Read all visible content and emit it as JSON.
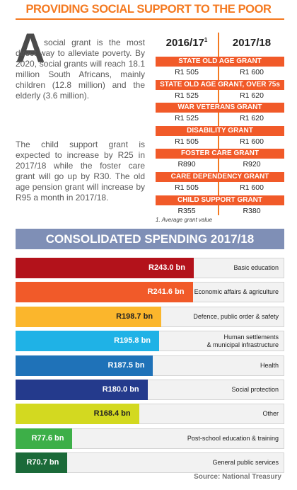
{
  "header": {
    "title": "PROVIDING SOCIAL SUPPORT TO THE POOR"
  },
  "intro": {
    "drop_cap": "A",
    "paragraphs": [
      "social grant is the most direct way to alleviate poverty. By 2020, social grants will reach 18.1 million South Africans, mainly children (12.8 million) and the elderly (3.6 million).",
      "The child support grant is expected to increase by R25 in 2017/18 while the foster care grant will go up by R30. The old age pension grant will increase by R95 a month in 2017/18."
    ]
  },
  "grants_table": {
    "columns": [
      {
        "label": "2016/17",
        "note": "1"
      },
      {
        "label": "2017/18"
      }
    ],
    "rows": [
      {
        "name": "STATE OLD AGE GRANT",
        "values": [
          "R1 505",
          "R1 600"
        ]
      },
      {
        "name": "STATE OLD AGE GRANT, OVER 75s",
        "values": [
          "R1 525",
          "R1 620"
        ]
      },
      {
        "name": "WAR VETERANS GRANT",
        "values": [
          "R1 525",
          "R1 620"
        ]
      },
      {
        "name": "DISABILITY GRANT",
        "values": [
          "R1 505",
          "R1 600"
        ]
      },
      {
        "name": "FOSTER CARE GRANT",
        "values": [
          "R890",
          "R920"
        ]
      },
      {
        "name": "CARE DEPENDENCY GRANT",
        "values": [
          "R1 505",
          "R1 600"
        ]
      },
      {
        "name": "CHILD SUPPORT GRANT",
        "values": [
          "R355",
          "R380"
        ]
      }
    ],
    "footnote": "1. Average grant value"
  },
  "chart_data": {
    "type": "bar",
    "orientation": "horizontal",
    "title": "CONSOLIDATED SPENDING 2017/18",
    "categories": [
      "Basic education",
      "Economic affairs & agriculture",
      "Defence, public order & safety",
      "Human settlements\n& municipal infrastructure",
      "Health",
      "Social protection",
      "Other",
      "Post-school education & training",
      "General public services"
    ],
    "values": [
      243.0,
      241.6,
      198.7,
      195.8,
      187.5,
      180.0,
      168.4,
      77.6,
      70.7
    ],
    "value_labels": [
      "R243.0 bn",
      "R241.6 bn",
      "R198.7 bn",
      "R195.8 bn",
      "R187.5 bn",
      "R180.0 bn",
      "R168.4 bn",
      "R77.6 bn",
      "R70.7 bn"
    ],
    "colors": [
      "#b3121b",
      "#f15a29",
      "#fbb62c",
      "#1fb2e6",
      "#1f72b8",
      "#243a8c",
      "#d3d920",
      "#3daf48",
      "#1b6a39"
    ],
    "source": "Source: National Treasury"
  }
}
